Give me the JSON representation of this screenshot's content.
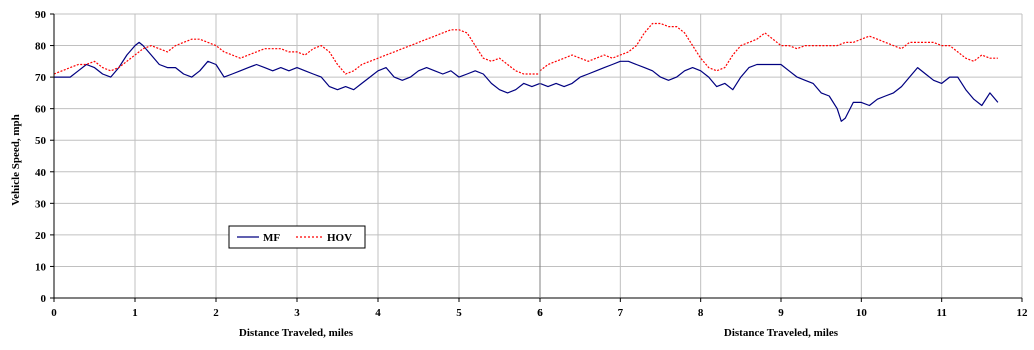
{
  "chart_data": [
    {
      "type": "line",
      "xlabel": "Distance Traveled, miles",
      "ylabel": "Vehicle Speed, mph",
      "xlim": [
        0,
        6
      ],
      "ylim": [
        0,
        90
      ],
      "x_ticks": [
        "0",
        "1",
        "2",
        "3",
        "4",
        "5",
        "6"
      ],
      "y_ticks": [
        "0",
        "10",
        "20",
        "30",
        "40",
        "50",
        "60",
        "70",
        "80",
        "90"
      ],
      "grid": true,
      "legend": "lower-left",
      "series": [
        {
          "name": "MF",
          "color": "#000080",
          "style": "solid",
          "x": [
            0,
            0.1,
            0.2,
            0.3,
            0.4,
            0.5,
            0.6,
            0.7,
            0.8,
            0.9,
            1.0,
            1.05,
            1.1,
            1.2,
            1.3,
            1.4,
            1.5,
            1.6,
            1.7,
            1.8,
            1.9,
            2.0,
            2.1,
            2.2,
            2.3,
            2.4,
            2.5,
            2.6,
            2.7,
            2.8,
            2.9,
            3.0,
            3.1,
            3.2,
            3.3,
            3.4,
            3.5,
            3.6,
            3.7,
            3.8,
            3.9,
            4.0,
            4.1,
            4.2,
            4.3,
            4.4,
            4.5,
            4.6,
            4.7,
            4.8,
            4.9,
            5.0,
            5.1,
            5.2,
            5.3,
            5.4,
            5.5,
            5.6,
            5.7,
            5.8,
            5.9,
            6.0
          ],
          "values": [
            70,
            70,
            70,
            72,
            74,
            73,
            71,
            70,
            73,
            77,
            80,
            81,
            80,
            77,
            74,
            73,
            73,
            71,
            70,
            72,
            75,
            74,
            70,
            71,
            72,
            73,
            74,
            73,
            72,
            73,
            72,
            73,
            72,
            71,
            70,
            67,
            66,
            67,
            66,
            68,
            70,
            72,
            73,
            70,
            69,
            70,
            72,
            73,
            72,
            71,
            72,
            70,
            71,
            72,
            71,
            68,
            66,
            65,
            66,
            68,
            67,
            68
          ]
        },
        {
          "name": "HOV",
          "color": "#ff0000",
          "style": "dotted",
          "x": [
            0,
            0.1,
            0.2,
            0.3,
            0.4,
            0.5,
            0.6,
            0.7,
            0.8,
            0.9,
            1.0,
            1.1,
            1.2,
            1.3,
            1.4,
            1.5,
            1.6,
            1.7,
            1.8,
            1.9,
            2.0,
            2.1,
            2.2,
            2.3,
            2.4,
            2.5,
            2.6,
            2.7,
            2.8,
            2.9,
            3.0,
            3.1,
            3.2,
            3.3,
            3.4,
            3.5,
            3.6,
            3.7,
            3.8,
            3.9,
            4.0,
            4.1,
            4.2,
            4.3,
            4.4,
            4.5,
            4.6,
            4.7,
            4.8,
            4.9,
            5.0,
            5.1,
            5.2,
            5.3,
            5.4,
            5.5,
            5.6,
            5.7,
            5.8,
            5.9,
            6.0
          ],
          "values": [
            71,
            72,
            73,
            74,
            74,
            75,
            73,
            72,
            73,
            75,
            77,
            79,
            80,
            79,
            78,
            80,
            81,
            82,
            82,
            81,
            80,
            78,
            77,
            76,
            77,
            78,
            79,
            79,
            79,
            78,
            78,
            77,
            79,
            80,
            78,
            74,
            71,
            72,
            74,
            75,
            76,
            77,
            78,
            79,
            80,
            81,
            82,
            83,
            84,
            85,
            85,
            84,
            80,
            76,
            75,
            76,
            74,
            72,
            71,
            71,
            71
          ]
        }
      ]
    },
    {
      "type": "line",
      "xlabel": "Distance Traveled, miles",
      "ylabel": "",
      "xlim": [
        6,
        12
      ],
      "ylim": [
        0,
        90
      ],
      "x_ticks": [
        "6",
        "7",
        "8",
        "9",
        "10",
        "11",
        "12"
      ],
      "grid": true,
      "series": [
        {
          "name": "MF",
          "color": "#000080",
          "style": "solid",
          "x": [
            6.0,
            6.1,
            6.2,
            6.3,
            6.4,
            6.5,
            6.6,
            6.7,
            6.8,
            6.9,
            7.0,
            7.1,
            7.2,
            7.3,
            7.4,
            7.5,
            7.6,
            7.7,
            7.8,
            7.9,
            8.0,
            8.1,
            8.2,
            8.3,
            8.4,
            8.5,
            8.6,
            8.7,
            8.8,
            8.9,
            9.0,
            9.1,
            9.2,
            9.3,
            9.4,
            9.5,
            9.6,
            9.7,
            9.75,
            9.8,
            9.9,
            10.0,
            10.1,
            10.2,
            10.3,
            10.4,
            10.5,
            10.6,
            10.7,
            10.8,
            10.9,
            11.0,
            11.1,
            11.2,
            11.3,
            11.4,
            11.5,
            11.6,
            11.7
          ],
          "values": [
            68,
            67,
            68,
            67,
            68,
            70,
            71,
            72,
            73,
            74,
            75,
            75,
            74,
            73,
            72,
            70,
            69,
            70,
            72,
            73,
            72,
            70,
            67,
            68,
            66,
            70,
            73,
            74,
            74,
            74,
            74,
            72,
            70,
            69,
            68,
            65,
            64,
            60,
            56,
            57,
            62,
            62,
            61,
            63,
            64,
            65,
            67,
            70,
            73,
            71,
            69,
            68,
            70,
            70,
            66,
            63,
            61,
            65,
            62
          ]
        },
        {
          "name": "HOV",
          "color": "#ff0000",
          "style": "dotted",
          "x": [
            6.0,
            6.1,
            6.2,
            6.3,
            6.4,
            6.5,
            6.6,
            6.7,
            6.8,
            6.9,
            7.0,
            7.1,
            7.2,
            7.3,
            7.4,
            7.5,
            7.6,
            7.7,
            7.8,
            7.9,
            8.0,
            8.1,
            8.2,
            8.3,
            8.4,
            8.5,
            8.6,
            8.7,
            8.8,
            8.9,
            9.0,
            9.1,
            9.2,
            9.3,
            9.4,
            9.5,
            9.6,
            9.7,
            9.8,
            9.9,
            10.0,
            10.1,
            10.2,
            10.3,
            10.4,
            10.5,
            10.6,
            10.7,
            10.8,
            10.9,
            11.0,
            11.1,
            11.2,
            11.3,
            11.4,
            11.5,
            11.6,
            11.7
          ],
          "values": [
            72,
            74,
            75,
            76,
            77,
            76,
            75,
            76,
            77,
            76,
            77,
            78,
            80,
            84,
            87,
            87,
            86,
            86,
            84,
            80,
            76,
            73,
            72,
            73,
            77,
            80,
            81,
            82,
            84,
            82,
            80,
            80,
            79,
            80,
            80,
            80,
            80,
            80,
            81,
            81,
            82,
            83,
            82,
            81,
            80,
            79,
            81,
            81,
            81,
            81,
            80,
            80,
            78,
            76,
            75,
            77,
            76,
            76
          ]
        }
      ]
    }
  ]
}
